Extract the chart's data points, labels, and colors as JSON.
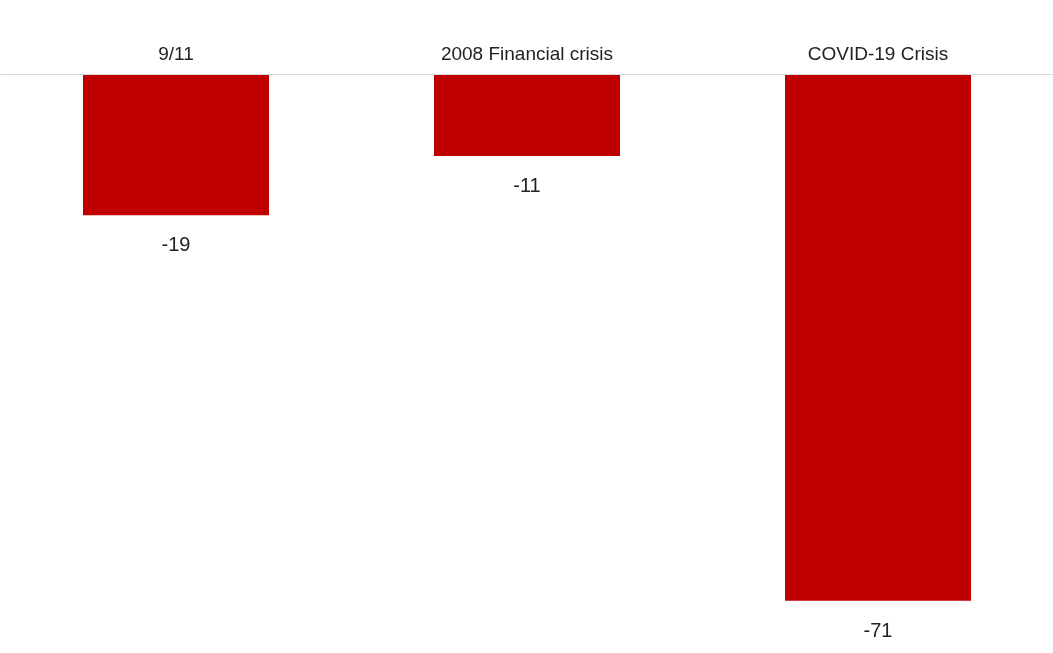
{
  "chart_data": {
    "type": "bar",
    "categories": [
      "9/11",
      "2008 Financial crisis",
      "COVID-19 Crisis"
    ],
    "values": [
      -19,
      -11,
      -71
    ],
    "color": "#c00000",
    "data_labels": true,
    "tick_labels": "x"
  }
}
